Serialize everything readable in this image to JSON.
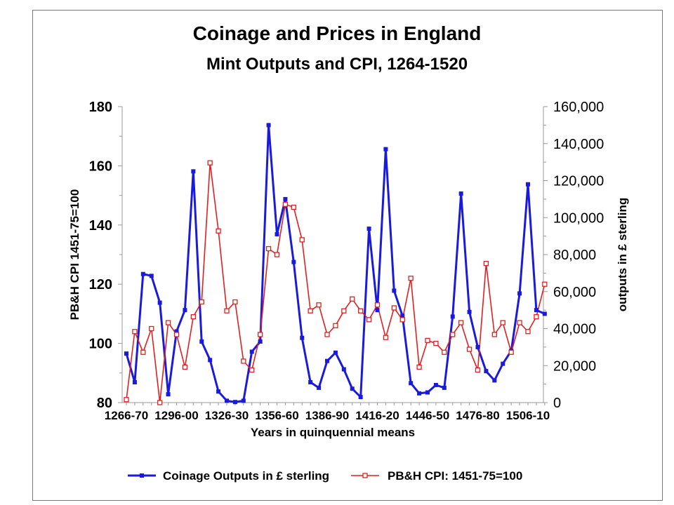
{
  "colors": {
    "coinage": "#1a1adc",
    "cpi": "#e02020",
    "axis": "#999999",
    "grid": "#aaaaaa"
  },
  "chart_data": {
    "type": "line",
    "title": "Coinage and Prices in England",
    "subtitle": "Mint Outputs and CPI, 1264-1520",
    "xlabel": "Years in quinquennial means",
    "ylabel_left": "PB&H CPI 1451-75=100",
    "ylabel_right": "outputs in £ sterling",
    "ylim_left": [
      80,
      180
    ],
    "ylim_right": [
      0,
      160000
    ],
    "yticks_left": [
      "80",
      "100",
      "120",
      "140",
      "160",
      "180"
    ],
    "yticks_right": [
      "0",
      "20,000",
      "40,000",
      "60,000",
      "80,000",
      "100,000",
      "120,000",
      "140,000",
      "160,000"
    ],
    "x_tick_labels": [
      "1266-70",
      "1296-00",
      "1326-30",
      "1356-60",
      "1386-90",
      "1416-20",
      "1446-50",
      "1476-80",
      "1506-10"
    ],
    "x_tick_indices": [
      0,
      6,
      12,
      18,
      24,
      30,
      36,
      42,
      48
    ],
    "n_points": 51,
    "grid": false,
    "legend_position": "bottom",
    "series": [
      {
        "name": "Coinage Outputs in £ sterling",
        "axis": "right",
        "marker": "filled-square",
        "values": [
          26500,
          11000,
          69500,
          68500,
          54000,
          4500,
          38500,
          50000,
          125000,
          33000,
          23000,
          6000,
          1000,
          300,
          1000,
          27500,
          33000,
          150000,
          91000,
          110000,
          76000,
          35000,
          11000,
          8000,
          22500,
          27000,
          18000,
          7500,
          3000,
          94000,
          50000,
          137000,
          60500,
          47000,
          10500,
          5000,
          5500,
          9500,
          8000,
          46500,
          113000,
          49000,
          30000,
          17000,
          12000,
          21000,
          28000,
          59000,
          118000,
          50000,
          48000
        ]
      },
      {
        "name": "PB&H CPI: 1451-75=100",
        "axis": "left",
        "marker": "open-square",
        "values": [
          81,
          104,
          97,
          105,
          80,
          107,
          103,
          92,
          109,
          114,
          161,
          138,
          111,
          114,
          94,
          91,
          103,
          132,
          130,
          147,
          146,
          135,
          111,
          113,
          103,
          106,
          111,
          115,
          111,
          108,
          113,
          102,
          112,
          108,
          122,
          92,
          101,
          100,
          97,
          103,
          107,
          98,
          91,
          127,
          103,
          107,
          97,
          107,
          104,
          109,
          120
        ]
      }
    ]
  }
}
